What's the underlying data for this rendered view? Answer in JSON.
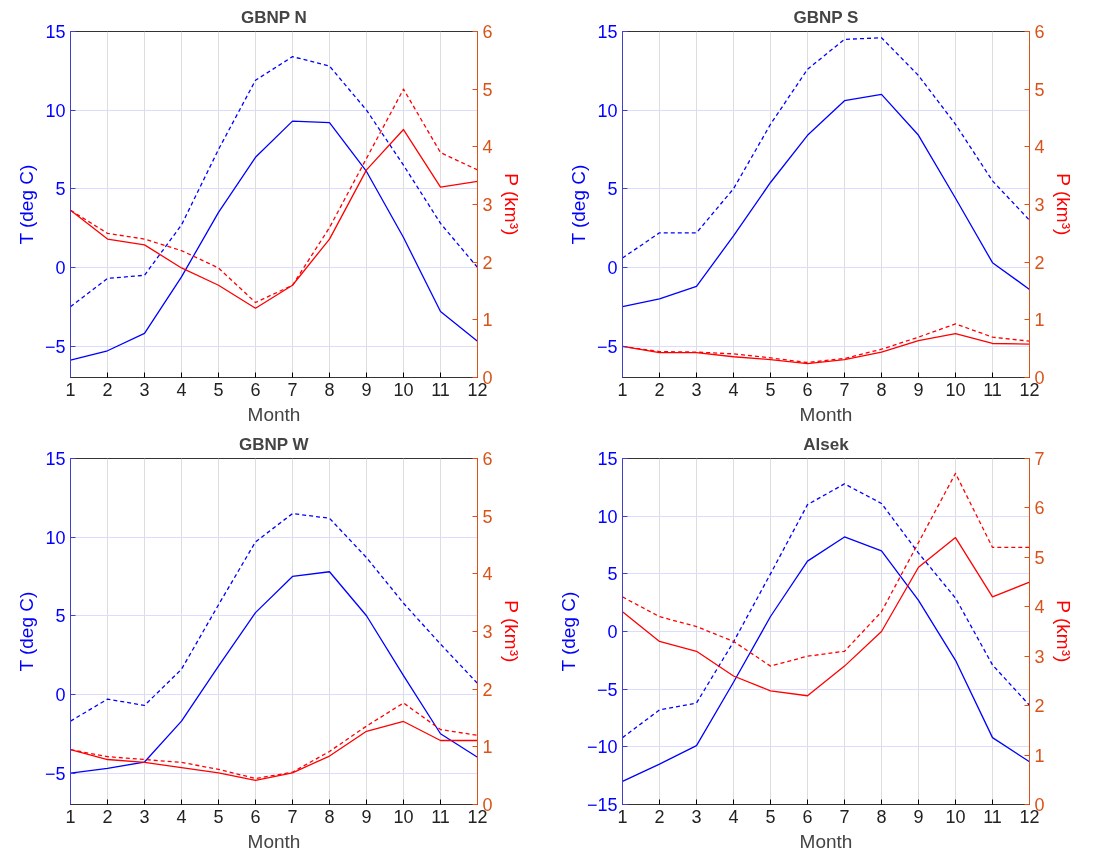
{
  "chart_data": [
    {
      "type": "line",
      "title": "GBNP N",
      "xlabel": "Month",
      "ylabel": "T (deg C)",
      "y2label": "P (km³)",
      "x": [
        1,
        2,
        3,
        4,
        5,
        6,
        7,
        8,
        9,
        10,
        11,
        12
      ],
      "xlim": [
        1,
        12
      ],
      "xticks": [
        1,
        2,
        3,
        4,
        5,
        6,
        7,
        8,
        9,
        10,
        11,
        12
      ],
      "ylim": [
        -7,
        15
      ],
      "yticks": [
        -5,
        0,
        5,
        10,
        15
      ],
      "y2lim": [
        0,
        6
      ],
      "y2ticks": [
        0,
        1,
        2,
        3,
        4,
        5,
        6
      ],
      "grid": true,
      "series": [
        {
          "color": "#0000ff",
          "line_style": "solid",
          "values": [
            -5.9,
            -5.3,
            -4.2,
            -0.6,
            3.5,
            7.0,
            9.3,
            9.2,
            6.1,
            1.9,
            -2.8,
            -4.7
          ]
        },
        {
          "color": "#0000ff",
          "line_style": "dashed",
          "values": [
            -2.5,
            -0.7,
            -0.5,
            2.7,
            7.5,
            11.9,
            13.4,
            12.8,
            10.0,
            6.5,
            2.8,
            0.0
          ]
        },
        {
          "color": "#ff0000",
          "line_style": "solid",
          "axis": "y2",
          "values": [
            2.9,
            2.4,
            2.3,
            1.9,
            1.6,
            1.2,
            1.6,
            2.4,
            3.6,
            4.3,
            3.3,
            3.4
          ]
        },
        {
          "color": "#ff0000",
          "line_style": "dashed",
          "axis": "y2",
          "values": [
            2.9,
            2.5,
            2.4,
            2.2,
            1.9,
            1.3,
            1.6,
            2.6,
            3.8,
            5.0,
            3.9,
            3.6
          ]
        }
      ]
    },
    {
      "type": "line",
      "title": "GBNP S",
      "xlabel": "Month",
      "ylabel": "T (deg C)",
      "y2label": "P (km³)",
      "x": [
        1,
        2,
        3,
        4,
        5,
        6,
        7,
        8,
        9,
        10,
        11,
        12
      ],
      "xlim": [
        1,
        12
      ],
      "xticks": [
        1,
        2,
        3,
        4,
        5,
        6,
        7,
        8,
        9,
        10,
        11,
        12
      ],
      "ylim": [
        -7,
        15
      ],
      "yticks": [
        -5,
        0,
        5,
        10,
        15
      ],
      "y2lim": [
        0,
        6
      ],
      "y2ticks": [
        0,
        1,
        2,
        3,
        4,
        5,
        6
      ],
      "grid": true,
      "series": [
        {
          "color": "#0000ff",
          "line_style": "solid",
          "values": [
            -2.5,
            -2.0,
            -1.2,
            2.0,
            5.4,
            8.4,
            10.6,
            11.0,
            8.4,
            4.4,
            0.3,
            -1.4
          ]
        },
        {
          "color": "#0000ff",
          "line_style": "dashed",
          "values": [
            0.6,
            2.2,
            2.2,
            5.0,
            9.1,
            12.6,
            14.5,
            14.6,
            12.2,
            9.1,
            5.5,
            3.0
          ]
        },
        {
          "color": "#ff0000",
          "line_style": "solid",
          "axis": "y2",
          "values": [
            0.54,
            0.43,
            0.43,
            0.36,
            0.31,
            0.24,
            0.31,
            0.44,
            0.64,
            0.76,
            0.59,
            0.58
          ]
        },
        {
          "color": "#ff0000",
          "line_style": "dashed",
          "axis": "y2",
          "values": [
            0.54,
            0.45,
            0.44,
            0.41,
            0.34,
            0.26,
            0.33,
            0.49,
            0.7,
            0.93,
            0.7,
            0.63
          ]
        }
      ]
    },
    {
      "type": "line",
      "title": "GBNP W",
      "xlabel": "Month",
      "ylabel": "T (deg C)",
      "y2label": "P (km³)",
      "x": [
        1,
        2,
        3,
        4,
        5,
        6,
        7,
        8,
        9,
        10,
        11,
        12
      ],
      "xlim": [
        1,
        12
      ],
      "xticks": [
        1,
        2,
        3,
        4,
        5,
        6,
        7,
        8,
        9,
        10,
        11,
        12
      ],
      "ylim": [
        -7,
        15
      ],
      "yticks": [
        -5,
        0,
        5,
        10,
        15
      ],
      "y2lim": [
        0,
        6
      ],
      "y2ticks": [
        0,
        1,
        2,
        3,
        4,
        5,
        6
      ],
      "grid": true,
      "series": [
        {
          "color": "#0000ff",
          "line_style": "solid",
          "values": [
            -5.0,
            -4.7,
            -4.3,
            -1.7,
            1.8,
            5.2,
            7.5,
            7.8,
            5.0,
            1.2,
            -2.5,
            -4.0
          ]
        },
        {
          "color": "#0000ff",
          "line_style": "dashed",
          "values": [
            -1.7,
            -0.3,
            -0.7,
            1.6,
            5.7,
            9.7,
            11.5,
            11.2,
            8.7,
            5.8,
            3.2,
            0.7
          ]
        },
        {
          "color": "#ff0000",
          "line_style": "solid",
          "axis": "y2",
          "values": [
            0.95,
            0.78,
            0.73,
            0.64,
            0.55,
            0.42,
            0.55,
            0.84,
            1.27,
            1.44,
            1.11,
            1.11
          ]
        },
        {
          "color": "#ff0000",
          "line_style": "dashed",
          "axis": "y2",
          "values": [
            0.95,
            0.83,
            0.78,
            0.73,
            0.61,
            0.45,
            0.56,
            0.92,
            1.36,
            1.76,
            1.3,
            1.2
          ]
        }
      ]
    },
    {
      "type": "line",
      "title": "Alsek",
      "xlabel": "Month",
      "ylabel": "T (deg C)",
      "y2label": "P (km³)",
      "x": [
        1,
        2,
        3,
        4,
        5,
        6,
        7,
        8,
        9,
        10,
        11,
        12
      ],
      "xlim": [
        1,
        12
      ],
      "xticks": [
        1,
        2,
        3,
        4,
        5,
        6,
        7,
        8,
        9,
        10,
        11,
        12
      ],
      "ylim": [
        -15,
        15
      ],
      "yticks": [
        -15,
        -10,
        -5,
        0,
        5,
        10,
        15
      ],
      "y2lim": [
        0,
        7
      ],
      "y2ticks": [
        0,
        1,
        2,
        3,
        4,
        5,
        6,
        7
      ],
      "grid": true,
      "series": [
        {
          "color": "#0000ff",
          "line_style": "solid",
          "values": [
            -13.0,
            -11.5,
            -9.9,
            -4.4,
            1.3,
            6.1,
            8.2,
            7.0,
            2.7,
            -2.5,
            -9.2,
            -11.3
          ]
        },
        {
          "color": "#0000ff",
          "line_style": "dashed",
          "values": [
            -9.2,
            -6.8,
            -6.2,
            -0.9,
            5.0,
            11.0,
            12.8,
            11.1,
            6.8,
            2.9,
            -2.9,
            -6.4
          ]
        },
        {
          "color": "#ff0000",
          "line_style": "solid",
          "axis": "y2",
          "values": [
            3.9,
            3.3,
            3.1,
            2.6,
            2.3,
            2.2,
            2.8,
            3.5,
            4.8,
            5.4,
            4.2,
            4.5
          ]
        },
        {
          "color": "#ff0000",
          "line_style": "dashed",
          "axis": "y2",
          "values": [
            4.2,
            3.8,
            3.6,
            3.3,
            2.8,
            3.0,
            3.1,
            3.9,
            5.3,
            6.7,
            5.2,
            5.2
          ]
        }
      ]
    }
  ]
}
